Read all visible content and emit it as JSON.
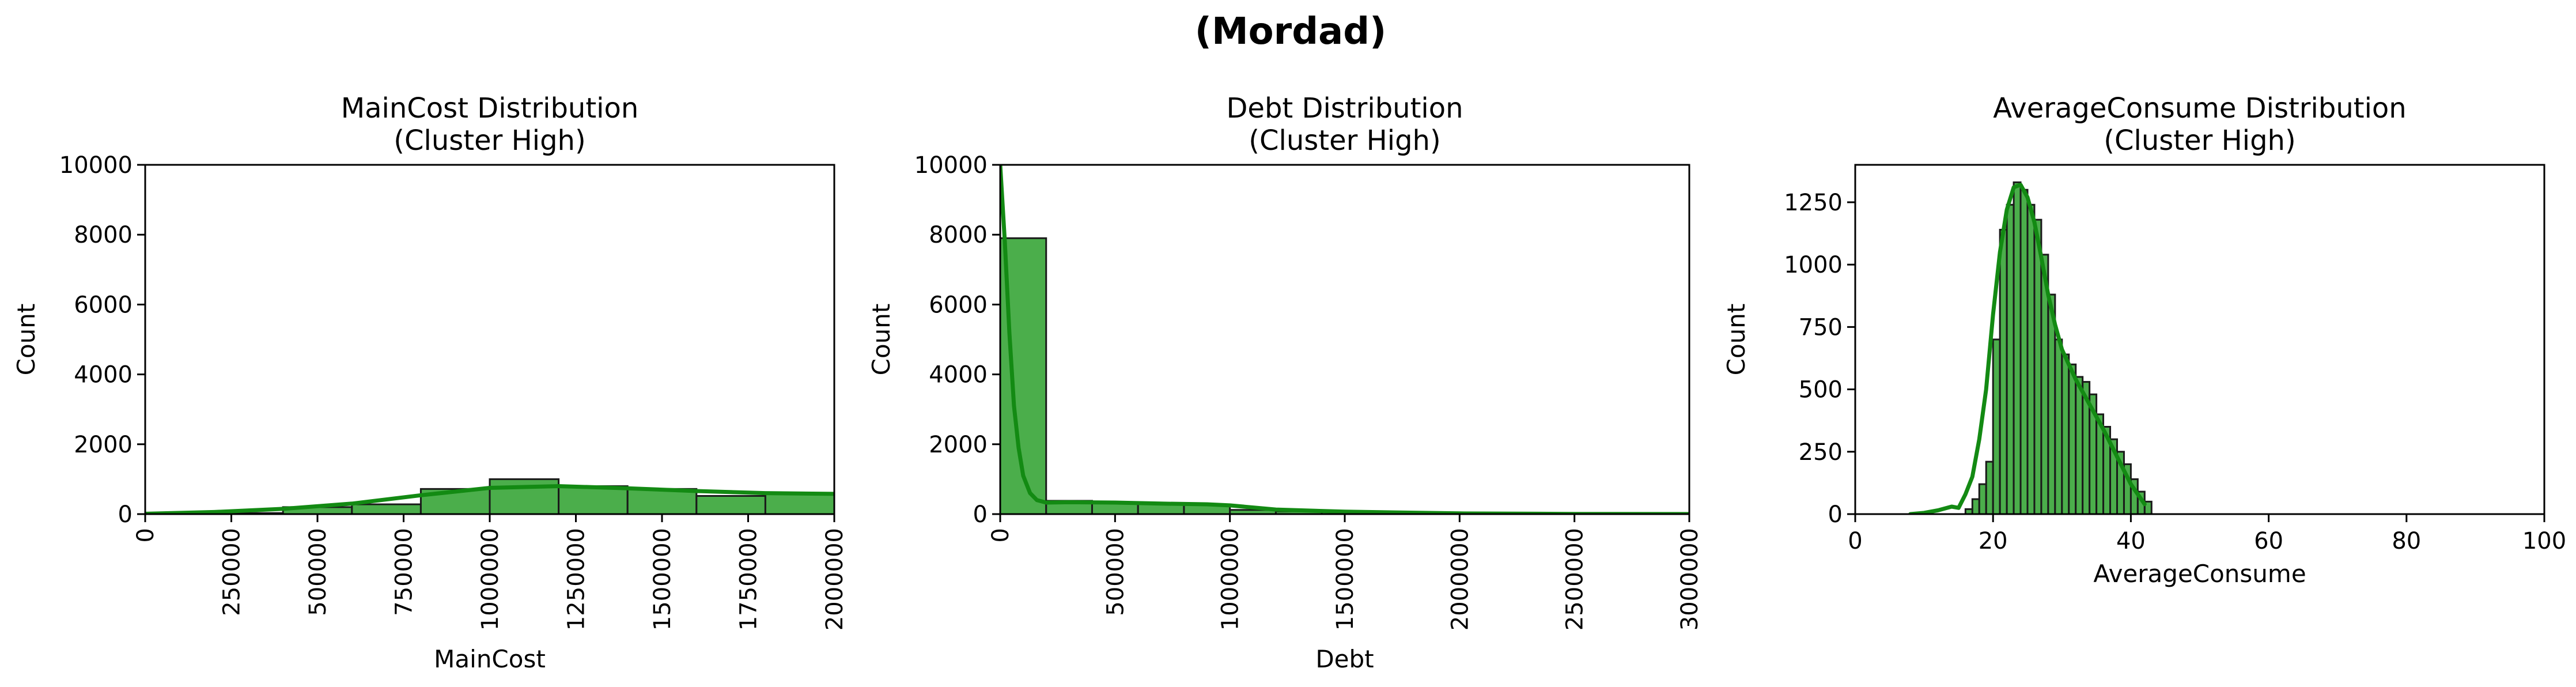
{
  "figure": {
    "suptitle": "(Mordad)"
  },
  "chart_data": [
    {
      "type": "bar",
      "subtype": "histogram",
      "title": "MainCost Distribution\n(Cluster High)",
      "title_lines": [
        "MainCost Distribution",
        "(Cluster High)"
      ],
      "xlabel": "MainCost",
      "ylabel": "Count",
      "xlim": [
        0,
        2000000
      ],
      "ylim": [
        0,
        10000
      ],
      "xticks": [
        0,
        250000,
        500000,
        750000,
        1000000,
        1250000,
        1500000,
        1750000,
        2000000
      ],
      "xtick_labels": [
        "0",
        "250000",
        "500000",
        "750000",
        "1000000",
        "1250000",
        "1500000",
        "1750000",
        "2000000"
      ],
      "yticks": [
        0,
        2000,
        4000,
        6000,
        8000,
        10000
      ],
      "ytick_labels": [
        "0",
        "2000",
        "4000",
        "6000",
        "8000",
        "10000"
      ],
      "xtick_rotation": "vertical",
      "bin_edges": [
        0,
        200000,
        400000,
        600000,
        800000,
        1000000,
        1200000,
        1400000,
        1600000,
        1800000,
        2000000
      ],
      "counts": [
        0,
        30,
        200,
        280,
        720,
        1000,
        800,
        720,
        520,
        580
      ],
      "kde": {
        "x": [
          0,
          200000,
          400000,
          600000,
          800000,
          1000000,
          1200000,
          1400000,
          1600000,
          1800000,
          2000000
        ],
        "y": [
          10,
          60,
          150,
          300,
          540,
          750,
          800,
          740,
          660,
          600,
          580
        ]
      },
      "bar_color": "#2ca02c",
      "bar_opacity": 0.85,
      "kde_color": "#138a13",
      "grid": false
    },
    {
      "type": "bar",
      "subtype": "histogram",
      "title": "Debt Distribution\n(Cluster High)",
      "title_lines": [
        "Debt Distribution",
        "(Cluster High)"
      ],
      "xlabel": "Debt",
      "ylabel": "Count",
      "xlim": [
        0,
        3000000
      ],
      "ylim": [
        0,
        10000
      ],
      "xticks": [
        0,
        500000,
        1000000,
        1500000,
        2000000,
        2500000,
        3000000
      ],
      "xtick_labels": [
        "0",
        "500000",
        "1000000",
        "1500000",
        "2000000",
        "2500000",
        "3000000"
      ],
      "yticks": [
        0,
        2000,
        4000,
        6000,
        8000,
        10000
      ],
      "ytick_labels": [
        "0",
        "2000",
        "4000",
        "6000",
        "8000",
        "10000"
      ],
      "xtick_rotation": "vertical",
      "bin_edges": [
        0,
        200000,
        400000,
        600000,
        800000,
        1000000,
        1200000,
        1400000,
        1600000,
        1800000,
        2000000,
        2200000,
        2400000,
        2600000,
        2800000,
        3000000
      ],
      "counts": [
        7900,
        380,
        320,
        300,
        270,
        120,
        80,
        60,
        40,
        30,
        20,
        0,
        0,
        0,
        0
      ],
      "kde": {
        "x": [
          0,
          20000,
          40000,
          60000,
          80000,
          100000,
          130000,
          160000,
          200000,
          300000,
          500000,
          700000,
          900000,
          1000000,
          1200000,
          1500000,
          2000000,
          2500000,
          3000000
        ],
        "y": [
          10000,
          7800,
          5200,
          3100,
          1900,
          1100,
          600,
          400,
          330,
          340,
          330,
          300,
          280,
          250,
          130,
          70,
          20,
          5,
          2
        ]
      },
      "bar_color": "#2ca02c",
      "bar_opacity": 0.85,
      "kde_color": "#138a13",
      "grid": false
    },
    {
      "type": "bar",
      "subtype": "histogram",
      "title": "AverageConsume Distribution\n(Cluster High)",
      "title_lines": [
        "AverageConsume Distribution",
        "(Cluster High)"
      ],
      "xlabel": "AverageConsume",
      "ylabel": "Count",
      "xlim": [
        0,
        100
      ],
      "ylim": [
        0,
        1400
      ],
      "xticks": [
        0,
        20,
        40,
        60,
        80,
        100
      ],
      "xtick_labels": [
        "0",
        "20",
        "40",
        "60",
        "80",
        "100"
      ],
      "yticks": [
        0,
        250,
        500,
        750,
        1000,
        1250
      ],
      "ytick_labels": [
        "0",
        "250",
        "500",
        "750",
        "1000",
        "1250"
      ],
      "xtick_rotation": "horizontal",
      "bin_edges": [
        16,
        17,
        18,
        19,
        20,
        21,
        22,
        23,
        24,
        25,
        26,
        27,
        28,
        29,
        30,
        31,
        32,
        33,
        34,
        35,
        36,
        37,
        38,
        39,
        40,
        41,
        42,
        43
      ],
      "counts": [
        20,
        60,
        120,
        210,
        700,
        1140,
        1240,
        1330,
        1300,
        1240,
        1180,
        1040,
        880,
        700,
        640,
        600,
        550,
        530,
        480,
        400,
        350,
        300,
        250,
        200,
        140,
        90,
        50
      ],
      "kde": {
        "x": [
          8,
          10,
          12,
          14,
          15,
          16,
          17,
          18,
          19,
          20,
          21,
          22,
          23,
          24,
          25,
          26,
          27,
          28,
          29,
          30,
          32,
          34,
          36,
          38,
          40,
          42
        ],
        "y": [
          0,
          5,
          15,
          30,
          25,
          80,
          150,
          300,
          500,
          800,
          1050,
          1220,
          1310,
          1320,
          1270,
          1170,
          1030,
          880,
          760,
          660,
          540,
          440,
          340,
          230,
          120,
          40
        ]
      },
      "bar_color": "#2ca02c",
      "bar_opacity": 0.85,
      "kde_color": "#138a13",
      "grid": false
    }
  ]
}
